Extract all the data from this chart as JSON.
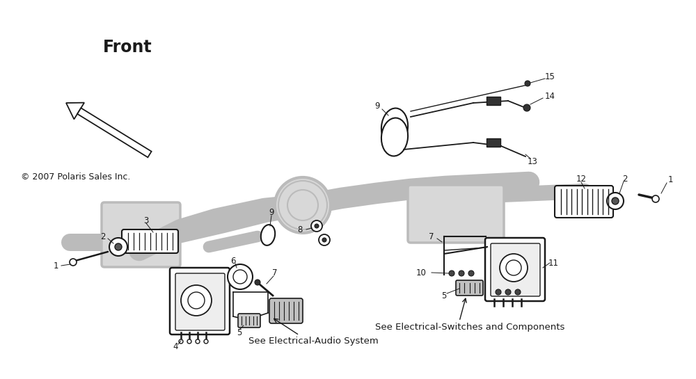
{
  "bg_color": "#ffffff",
  "line_color": "#1a1a1a",
  "ghost_color": "#bbbbbb",
  "ghost_fill": "#d8d8d8",
  "front_text": "Front",
  "copyright_text": "© 2007 Polaris Sales Inc.",
  "note1": "See Electrical-Audio System",
  "note2": "See Electrical-Switches and Components",
  "figsize": [
    10.0,
    5.45
  ],
  "dpi": 100
}
